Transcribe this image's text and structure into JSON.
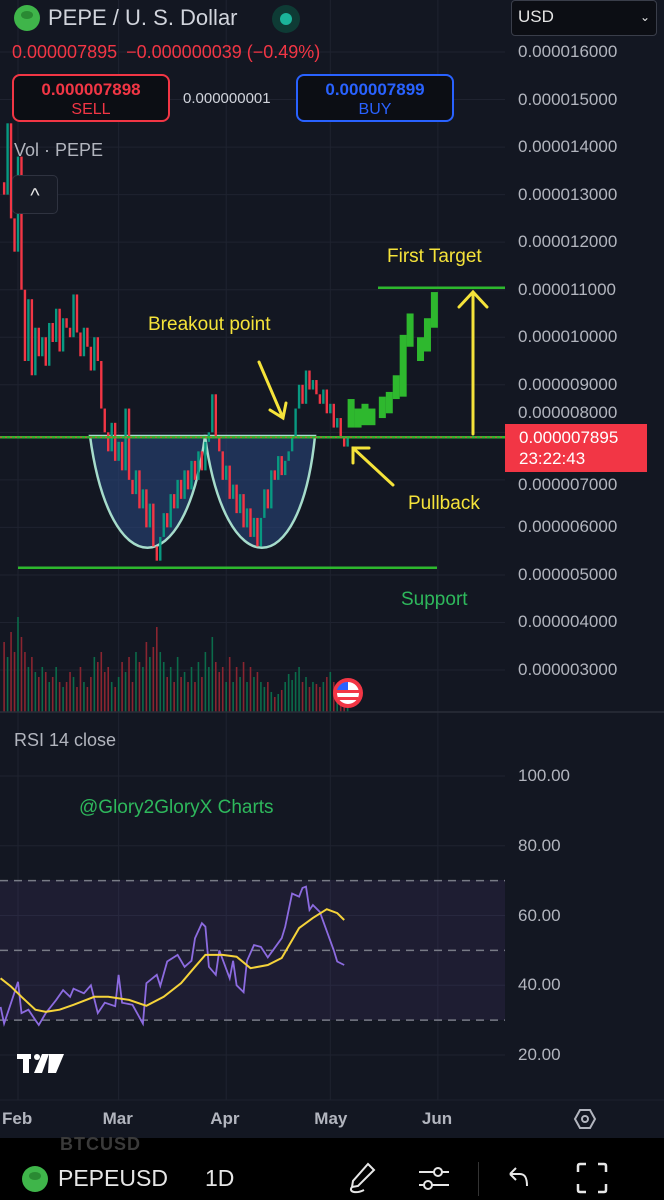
{
  "header": {
    "title": "PEPE / U. S. Dollar",
    "currency": "USD",
    "last_price": "0.000007895",
    "change": "−0.000000039",
    "change_pct": "(−0.49%)",
    "sell_price": "0.000007898",
    "sell_label": "SELL",
    "buy_price": "0.000007899",
    "buy_label": "BUY",
    "spread": "0.000000001",
    "market_status_color": "#1bb39a"
  },
  "price_pane": {
    "volume_label": "Vol · PEPE",
    "price_axis": [
      "0.000016000",
      "0.000015000",
      "0.000014000",
      "0.000013000",
      "0.000012000",
      "0.000011000",
      "0.000010000",
      "0.000009000",
      "0.000008000",
      "0.000007000",
      "0.000006000",
      "0.000005000",
      "0.000004000",
      "0.000003000"
    ],
    "price_tag": {
      "price": "0.000007895",
      "countdown": "23:22:43"
    },
    "annotations": {
      "breakout": "Breakout point",
      "target": "First Target",
      "pullback": "Pullback",
      "support": "Support"
    }
  },
  "rsi_pane": {
    "label": "RSI 14 close",
    "axis": [
      "100.00",
      "80.00",
      "60.00",
      "40.00",
      "20.00"
    ],
    "watermark": "@Glory2GloryX Charts"
  },
  "time_axis": [
    "Feb",
    "Mar",
    "Apr",
    "May",
    "Jun"
  ],
  "toolbar": {
    "ghost_symbol": "BTCUSD",
    "symbol": "PEPEUSD",
    "interval": "1D"
  },
  "chart_data": {
    "type": "candlestick",
    "interval": "1D",
    "price_range": [
      2.6e-06,
      1.65e-05
    ],
    "rsi_range": [
      15,
      105
    ],
    "colors": {
      "up": "#089981",
      "down": "#f23645",
      "projection": "#2eb82e",
      "rsi": "#8c6be0",
      "rsi_ma": "#f5d33a",
      "annotation": "#f5e33a",
      "level": "#2eb82e"
    },
    "candles_note_fields": [
      "date",
      "close",
      "volume_rel"
    ],
    "candles": [
      [
        "Jan 28",
        1.3e-05,
        70
      ],
      [
        "Jan 29",
        1.45e-05,
        55
      ],
      [
        "Jan 30",
        1.25e-05,
        80
      ],
      [
        "Jan 31",
        1.18e-05,
        60
      ],
      [
        "Feb 1",
        1.38e-05,
        95
      ],
      [
        "Feb 2",
        1.1e-05,
        75
      ],
      [
        "Feb 3",
        9.5e-06,
        60
      ],
      [
        "Feb 4",
        1.08e-05,
        45
      ],
      [
        "Feb 5",
        9.2e-06,
        55
      ],
      [
        "Feb 6",
        1.02e-05,
        40
      ],
      [
        "Feb 7",
        9.6e-06,
        35
      ],
      [
        "Feb 8",
        1e-05,
        45
      ],
      [
        "Feb 9",
        9.4e-06,
        40
      ],
      [
        "Feb 10",
        1.03e-05,
        30
      ],
      [
        "Feb 11",
        9.9e-06,
        35
      ],
      [
        "Feb 12",
        1.06e-05,
        45
      ],
      [
        "Feb 13",
        9.7e-06,
        30
      ],
      [
        "Feb 14",
        1.04e-05,
        25
      ],
      [
        "Feb 15",
        1.02e-05,
        30
      ],
      [
        "Feb 16",
        1e-05,
        40
      ],
      [
        "Feb 17",
        1.09e-05,
        35
      ],
      [
        "Feb 18",
        1.01e-05,
        25
      ],
      [
        "Feb 19",
        9.6e-06,
        45
      ],
      [
        "Feb 20",
        1.02e-05,
        30
      ],
      [
        "Feb 21",
        9.8e-06,
        25
      ],
      [
        "Feb 22",
        9.3e-06,
        35
      ],
      [
        "Feb 23",
        1e-05,
        55
      ],
      [
        "Feb 24",
        9.5e-06,
        50
      ],
      [
        "Feb 25",
        8.5e-06,
        60
      ],
      [
        "Feb 26",
        8e-06,
        40
      ],
      [
        "Feb 27",
        7.6e-06,
        45
      ],
      [
        "Feb 28",
        8.2e-06,
        30
      ],
      [
        "Feb 29",
        7.4e-06,
        25
      ],
      [
        "Mar 1",
        7.8e-06,
        35
      ],
      [
        "Mar 2",
        7.2e-06,
        50
      ],
      [
        "Mar 3",
        8.5e-06,
        40
      ],
      [
        "Mar 4",
        7e-06,
        55
      ],
      [
        "Mar 5",
        6.7e-06,
        30
      ],
      [
        "Mar 6",
        7.2e-06,
        60
      ],
      [
        "Mar 7",
        6.4e-06,
        50
      ],
      [
        "Mar 8",
        6.8e-06,
        45
      ],
      [
        "Mar 9",
        6e-06,
        70
      ],
      [
        "Mar 10",
        6.5e-06,
        55
      ],
      [
        "Mar 11",
        5.6e-06,
        65
      ],
      [
        "Mar 12",
        5.3e-06,
        85
      ],
      [
        "Mar 13",
        5.8e-06,
        60
      ],
      [
        "Mar 14",
        6.3e-06,
        50
      ],
      [
        "Mar 15",
        6e-06,
        35
      ],
      [
        "Mar 16",
        6.7e-06,
        45
      ],
      [
        "Mar 17",
        6.4e-06,
        30
      ],
      [
        "Mar 18",
        7e-06,
        55
      ],
      [
        "Mar 19",
        6.6e-06,
        35
      ],
      [
        "Mar 20",
        7.2e-06,
        40
      ],
      [
        "Mar 21",
        6.8e-06,
        30
      ],
      [
        "Mar 22",
        7.4e-06,
        45
      ],
      [
        "Mar 23",
        7e-06,
        30
      ],
      [
        "Mar 24",
        7.6e-06,
        50
      ],
      [
        "Mar 25",
        7.2e-06,
        35
      ],
      [
        "Mar 26",
        7.8e-06,
        60
      ],
      [
        "Mar 27",
        8e-06,
        45
      ],
      [
        "Mar 28",
        8.8e-06,
        75
      ],
      [
        "Mar 29",
        7.9e-06,
        50
      ],
      [
        "Mar 30",
        7.6e-06,
        40
      ],
      [
        "Mar 31",
        7e-06,
        45
      ],
      [
        "Apr 1",
        7.3e-06,
        30
      ],
      [
        "Apr 2",
        6.6e-06,
        55
      ],
      [
        "Apr 3",
        6.9e-06,
        30
      ],
      [
        "Apr 4",
        6.3e-06,
        45
      ],
      [
        "Apr 5",
        6.7e-06,
        35
      ],
      [
        "Apr 6",
        6e-06,
        50
      ],
      [
        "Apr 7",
        6.4e-06,
        30
      ],
      [
        "Apr 8",
        5.8e-06,
        45
      ],
      [
        "Apr 9",
        6.2e-06,
        35
      ],
      [
        "Apr 10",
        5.6e-06,
        40
      ],
      [
        "Apr 11",
        6.2e-06,
        30
      ],
      [
        "Apr 12",
        6.8e-06,
        25
      ],
      [
        "Apr 13",
        6.4e-06,
        30
      ],
      [
        "Apr 14",
        7.2e-06,
        20
      ],
      [
        "Apr 15",
        7e-06,
        15
      ],
      [
        "Apr 16",
        7.5e-06,
        18
      ],
      [
        "Apr 17",
        7.1e-06,
        22
      ],
      [
        "Apr 18",
        7.4e-06,
        30
      ],
      [
        "Apr 19",
        7.6e-06,
        38
      ],
      [
        "Apr 20",
        7.9e-06,
        32
      ],
      [
        "Apr 21",
        8.5e-06,
        40
      ],
      [
        "Apr 22",
        9e-06,
        45
      ],
      [
        "Apr 23",
        8.6e-06,
        30
      ],
      [
        "Apr 24",
        9.3e-06,
        35
      ],
      [
        "Apr 25",
        8.9e-06,
        25
      ],
      [
        "Apr 26",
        9.1e-06,
        30
      ],
      [
        "Apr 27",
        8.8e-06,
        28
      ],
      [
        "Apr 28",
        8.6e-06,
        25
      ],
      [
        "Apr 29",
        8.9e-06,
        30
      ],
      [
        "Apr 30",
        8.4e-06,
        35
      ],
      [
        "May 1",
        8.6e-06,
        40
      ],
      [
        "May 2",
        8.1e-06,
        30
      ],
      [
        "May 3",
        8.3e-06,
        25
      ],
      [
        "May 4",
        7.9e-06,
        22
      ],
      [
        "May 5",
        7.7e-06,
        18
      ],
      [
        "May 6",
        7.9e-06,
        12
      ]
    ],
    "projection_fields": [
      "date",
      "open",
      "close"
    ],
    "projection": [
      [
        "May 7",
        8.1e-06,
        8.7e-06
      ],
      [
        "May 9",
        8.1e-06,
        8.5e-06
      ],
      [
        "May 11",
        8.15e-06,
        8.6e-06
      ],
      [
        "May 13",
        8.15e-06,
        8.5e-06
      ],
      [
        "May 16",
        8.3e-06,
        8.75e-06
      ],
      [
        "May 18",
        8.4e-06,
        8.85e-06
      ],
      [
        "May 20",
        8.7e-06,
        9.2e-06
      ],
      [
        "May 22",
        8.75e-06,
        1.005e-05
      ],
      [
        "May 24",
        9.8e-06,
        1.05e-05
      ],
      [
        "May 27",
        9.5e-06,
        1e-05
      ],
      [
        "May 29",
        9.7e-06,
        1.04e-05
      ],
      [
        "May 31",
        1.02e-05,
        1.095e-05
      ]
    ],
    "levels": {
      "resistance": 7.895e-06,
      "support": 5.15e-06,
      "target": 1.104e-05
    },
    "rsi": [
      [
        "Jan 27",
        33.8
      ],
      [
        "Jan 28",
        29
      ],
      [
        "Jan 30",
        35
      ],
      [
        "Feb 1",
        41
      ],
      [
        "Feb 2",
        32
      ],
      [
        "Feb 4",
        33
      ],
      [
        "Feb 6",
        30
      ],
      [
        "Feb 7",
        28.6
      ],
      [
        "Feb 9",
        32
      ],
      [
        "Feb 12",
        35.8
      ],
      [
        "Feb 14",
        38.6
      ],
      [
        "Feb 16",
        36.7
      ],
      [
        "Feb 17",
        39
      ],
      [
        "Feb 20",
        37.7
      ],
      [
        "Feb 22",
        40
      ],
      [
        "Feb 24",
        32
      ],
      [
        "Feb 26",
        35
      ],
      [
        "Feb 29",
        34
      ],
      [
        "Mar 1",
        43
      ],
      [
        "Mar 2",
        35
      ],
      [
        "Mar 5",
        34.4
      ],
      [
        "Mar 8",
        29
      ],
      [
        "Mar 9",
        40.6
      ],
      [
        "Mar 12",
        43
      ],
      [
        "Mar 13",
        39.8
      ],
      [
        "Mar 15",
        46.8
      ],
      [
        "Mar 18",
        48.7
      ],
      [
        "Mar 20",
        45.3
      ],
      [
        "Mar 22",
        47
      ],
      [
        "Mar 23",
        53.5
      ],
      [
        "Mar 25",
        57.8
      ],
      [
        "Mar 26",
        56.8
      ],
      [
        "Mar 27",
        45.3
      ],
      [
        "Mar 29",
        43
      ],
      [
        "Mar 30",
        50
      ],
      [
        "Apr 2",
        42
      ],
      [
        "Apr 3",
        47
      ],
      [
        "Apr 4",
        40
      ],
      [
        "Apr 6",
        38
      ],
      [
        "Apr 7",
        47
      ],
      [
        "Apr 9",
        51.5
      ],
      [
        "Apr 11",
        51
      ],
      [
        "Apr 13",
        48
      ],
      [
        "Apr 17",
        53.5
      ],
      [
        "Apr 18",
        56.8
      ],
      [
        "Apr 20",
        66.3
      ],
      [
        "Apr 22",
        65.4
      ],
      [
        "Apr 23",
        67.9
      ],
      [
        "Apr 24",
        68.3
      ],
      [
        "Apr 25",
        61.6
      ],
      [
        "Apr 26",
        63
      ],
      [
        "Apr 28",
        61
      ],
      [
        "Apr 29",
        58.2
      ],
      [
        "May 2",
        50
      ],
      [
        "May 3",
        46.8
      ],
      [
        "May 5",
        45.8
      ]
    ],
    "rsi_ma": [
      [
        "Jan 27",
        42
      ],
      [
        "Jan 30",
        39.6
      ],
      [
        "Feb 2",
        36.7
      ],
      [
        "Feb 6",
        33
      ],
      [
        "Feb 9",
        32.4
      ],
      [
        "Feb 13",
        33
      ],
      [
        "Feb 17",
        34.4
      ],
      [
        "Feb 23",
        36.7
      ],
      [
        "Feb 27",
        36.7
      ],
      [
        "Mar 4",
        35.8
      ],
      [
        "Mar 9",
        34.1
      ],
      [
        "Mar 14",
        36.7
      ],
      [
        "Mar 19",
        40.6
      ],
      [
        "Mar 23",
        45.3
      ],
      [
        "Mar 26",
        48.7
      ],
      [
        "Mar 31",
        48.7
      ],
      [
        "Apr 4",
        48.2
      ],
      [
        "Apr 8",
        44.9
      ],
      [
        "Apr 13",
        45.8
      ],
      [
        "Apr 17",
        47.8
      ],
      [
        "Apr 22",
        56.4
      ],
      [
        "Apr 26",
        59.3
      ],
      [
        "Apr 30",
        61.8
      ],
      [
        "May 3",
        60.7
      ],
      [
        "May 5",
        58.7
      ]
    ],
    "rsi_bands": [
      70,
      50,
      30
    ]
  }
}
